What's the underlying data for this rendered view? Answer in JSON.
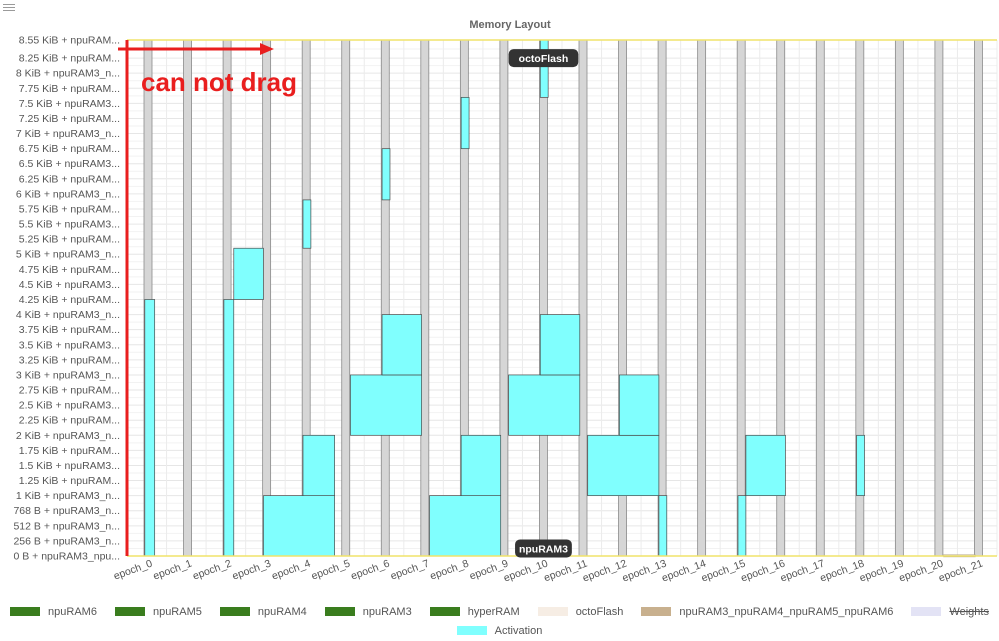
{
  "colors": {
    "activation": "#80fffe",
    "weights": "#e3e3f5",
    "epoch_bar": "#d6d6d6",
    "boundary_line": "#f0e46a",
    "annotation": "#e91e1e",
    "badge_bg": "#333333"
  },
  "annotation_text": "can not drag",
  "legend": [
    {
      "label": "npuRAM6",
      "color": "#3a7d1e",
      "hidden": false
    },
    {
      "label": "npuRAM5",
      "color": "#3a7d1e",
      "hidden": false
    },
    {
      "label": "npuRAM4",
      "color": "#3a7d1e",
      "hidden": false
    },
    {
      "label": "npuRAM3",
      "color": "#3a7d1e",
      "hidden": false
    },
    {
      "label": "hyperRAM",
      "color": "#3a7d1e",
      "hidden": false
    },
    {
      "label": "octoFlash",
      "color": "#f6ede4",
      "hidden": false
    },
    {
      "label": "npuRAM3_npuRAM4_npuRAM5_npuRAM6",
      "color": "#c8b08e",
      "hidden": false
    },
    {
      "label": "Weights",
      "color": "#e3e3f5",
      "hidden": true
    },
    {
      "label": "Activation",
      "color": "#80fffe",
      "hidden": false
    }
  ],
  "chart_data": {
    "type": "bar",
    "title": "Memory Layout",
    "xlabel": "",
    "ylabel": "",
    "categories": [
      "epoch_0",
      "epoch_1",
      "epoch_2",
      "epoch_3",
      "epoch_4",
      "epoch_5",
      "epoch_6",
      "epoch_7",
      "epoch_8",
      "epoch_9",
      "epoch_10",
      "epoch_11",
      "epoch_12",
      "epoch_13",
      "epoch_14",
      "epoch_15",
      "epoch_16",
      "epoch_17",
      "epoch_18",
      "epoch_19",
      "epoch_20",
      "epoch_21"
    ],
    "y_unit": "bytes",
    "ylim": [
      0,
      8755
    ],
    "yticks": [
      {
        "value": 0,
        "label": "0 B + npuRAM3_npu..."
      },
      {
        "value": 256,
        "label": "256 B + npuRAM3_n..."
      },
      {
        "value": 512,
        "label": "512 B + npuRAM3_n..."
      },
      {
        "value": 768,
        "label": "768 B + npuRAM3_n..."
      },
      {
        "value": 1024,
        "label": "1 KiB + npuRAM3_n..."
      },
      {
        "value": 1280,
        "label": "1.25 KiB + npuRAM..."
      },
      {
        "value": 1536,
        "label": "1.5 KiB + npuRAM3..."
      },
      {
        "value": 1792,
        "label": "1.75 KiB + npuRAM..."
      },
      {
        "value": 2048,
        "label": "2 KiB + npuRAM3_n..."
      },
      {
        "value": 2304,
        "label": "2.25 KiB + npuRAM..."
      },
      {
        "value": 2560,
        "label": "2.5 KiB + npuRAM3..."
      },
      {
        "value": 2816,
        "label": "2.75 KiB + npuRAM..."
      },
      {
        "value": 3072,
        "label": "3 KiB + npuRAM3_n..."
      },
      {
        "value": 3328,
        "label": "3.25 KiB + npuRAM..."
      },
      {
        "value": 3584,
        "label": "3.5 KiB + npuRAM3..."
      },
      {
        "value": 3840,
        "label": "3.75 KiB + npuRAM..."
      },
      {
        "value": 4096,
        "label": "4 KiB + npuRAM3_n..."
      },
      {
        "value": 4352,
        "label": "4.25 KiB + npuRAM..."
      },
      {
        "value": 4608,
        "label": "4.5 KiB + npuRAM3..."
      },
      {
        "value": 4864,
        "label": "4.75 KiB + npuRAM..."
      },
      {
        "value": 5120,
        "label": "5 KiB + npuRAM3_n..."
      },
      {
        "value": 5376,
        "label": "5.25 KiB + npuRAM..."
      },
      {
        "value": 5632,
        "label": "5.5 KiB + npuRAM3..."
      },
      {
        "value": 5888,
        "label": "5.75 KiB + npuRAM..."
      },
      {
        "value": 6144,
        "label": "6 KiB + npuRAM3_n..."
      },
      {
        "value": 6400,
        "label": "6.25 KiB + npuRAM..."
      },
      {
        "value": 6656,
        "label": "6.5 KiB + npuRAM3..."
      },
      {
        "value": 6912,
        "label": "6.75 KiB + npuRAM..."
      },
      {
        "value": 7168,
        "label": "7 KiB + npuRAM3_n..."
      },
      {
        "value": 7424,
        "label": "7.25 KiB + npuRAM..."
      },
      {
        "value": 7680,
        "label": "7.5 KiB + npuRAM3..."
      },
      {
        "value": 7936,
        "label": "7.75 KiB + npuRAM..."
      },
      {
        "value": 8192,
        "label": "8 KiB + npuRAM3_n..."
      },
      {
        "value": 8448,
        "label": "8.25 KiB + npuRAM..."
      },
      {
        "value": 8755,
        "label": "8.55 KiB + npuRAM..."
      }
    ],
    "grid": true,
    "legend_position": "bottom",
    "region_labels": [
      {
        "text": "octoFlash",
        "epoch": 10,
        "y": 8448
      },
      {
        "text": "npuRAM3",
        "epoch": 10,
        "y": 128
      }
    ],
    "activation_blocks": [
      {
        "x0": 0,
        "x1": 0.25,
        "y0": 0,
        "y1": 4352
      },
      {
        "x0": 2,
        "x1": 2.25,
        "y0": 0,
        "y1": 4352
      },
      {
        "x0": 2.25,
        "x1": 3.0,
        "y0": 4352,
        "y1": 5222
      },
      {
        "x0": 4,
        "x1": 4.2,
        "y0": 5222,
        "y1": 6042
      },
      {
        "x0": 3,
        "x1": 4.8,
        "y0": 0,
        "y1": 1024
      },
      {
        "x0": 4,
        "x1": 4.8,
        "y0": 1024,
        "y1": 2048
      },
      {
        "x0": 6,
        "x1": 6.2,
        "y0": 6042,
        "y1": 6911
      },
      {
        "x0": 5.2,
        "x1": 7.0,
        "y0": 2048,
        "y1": 3072
      },
      {
        "x0": 6,
        "x1": 7.0,
        "y0": 3072,
        "y1": 4096
      },
      {
        "x0": 8,
        "x1": 8.2,
        "y0": 6911,
        "y1": 7782
      },
      {
        "x0": 7.2,
        "x1": 9.0,
        "y0": 0,
        "y1": 1024
      },
      {
        "x0": 8,
        "x1": 9.0,
        "y0": 1024,
        "y1": 2048
      },
      {
        "x0": 10,
        "x1": 10.2,
        "y0": 7782,
        "y1": 8755
      },
      {
        "x0": 9.2,
        "x1": 11.0,
        "y0": 2048,
        "y1": 3072
      },
      {
        "x0": 10,
        "x1": 11.0,
        "y0": 3072,
        "y1": 4096
      },
      {
        "x0": 11.2,
        "x1": 13.0,
        "y0": 1024,
        "y1": 2048
      },
      {
        "x0": 12,
        "x1": 13.0,
        "y0": 2048,
        "y1": 3072
      },
      {
        "x0": 13,
        "x1": 13.2,
        "y0": 0,
        "y1": 1024
      },
      {
        "x0": 15,
        "x1": 15.2,
        "y0": 0,
        "y1": 1024
      },
      {
        "x0": 15.2,
        "x1": 16.2,
        "y0": 1024,
        "y1": 2048
      },
      {
        "x0": 18,
        "x1": 18.2,
        "y0": 1024,
        "y1": 2048
      }
    ],
    "weight_blocks": [
      {
        "x0": 20.2,
        "x1": 21.0,
        "y0": 0,
        "y1": 20
      }
    ]
  }
}
